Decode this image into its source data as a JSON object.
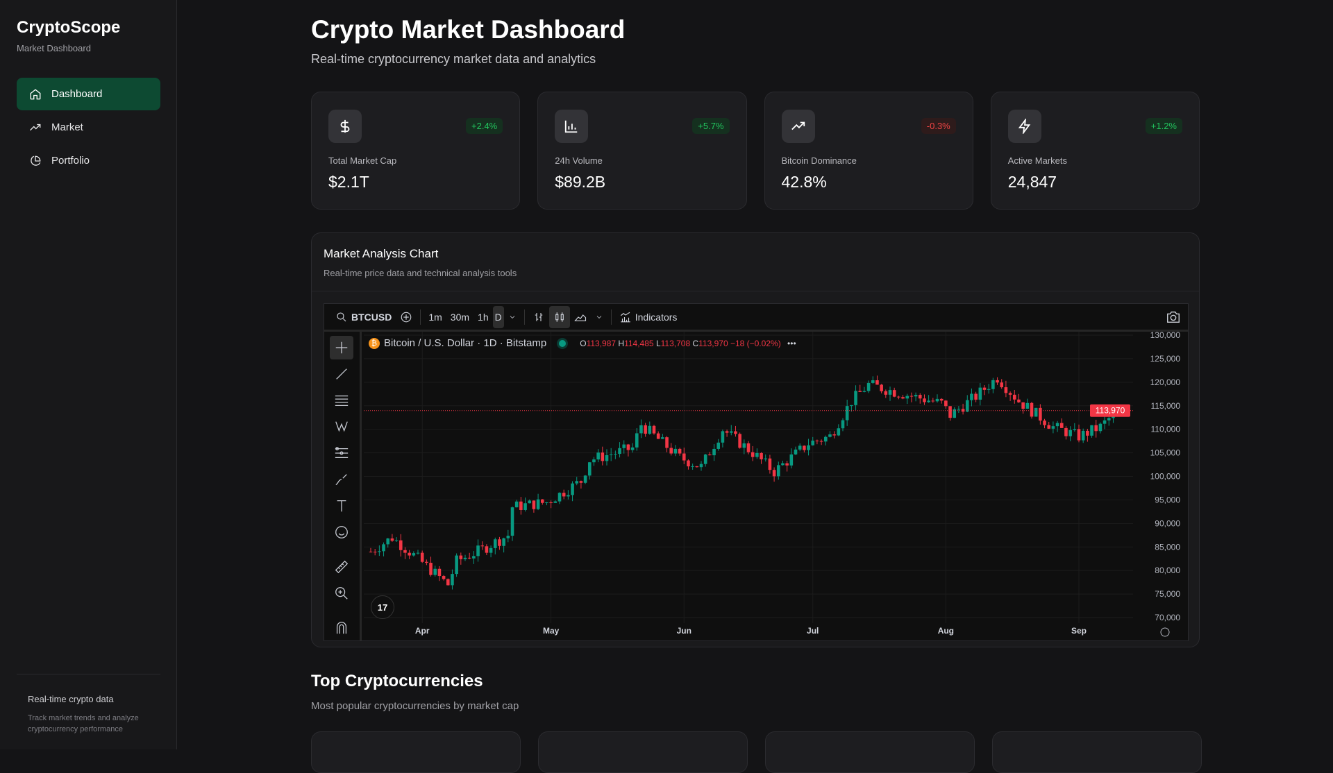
{
  "sidebar": {
    "logo": "CryptoScope",
    "subtitle": "Market Dashboard",
    "items": [
      {
        "label": "Dashboard",
        "icon": "home-icon"
      },
      {
        "label": "Market",
        "icon": "trending-up-icon"
      },
      {
        "label": "Portfolio",
        "icon": "pie-chart-icon"
      }
    ],
    "footer_title": "Real-time crypto data",
    "footer_text": "Track market trends and analyze cryptocurrency performance"
  },
  "header": {
    "title": "Crypto Market Dashboard",
    "subtitle": "Real-time cryptocurrency market data and analytics"
  },
  "stats": [
    {
      "label": "Total Market Cap",
      "value": "$2.1T",
      "change": "+2.4%",
      "icon": "dollar-icon"
    },
    {
      "label": "24h Volume",
      "value": "$89.2B",
      "change": "+5.7%",
      "icon": "bar-chart-icon"
    },
    {
      "label": "Bitcoin Dominance",
      "value": "42.8%",
      "change": "-0.3%",
      "icon": "trending-up-icon"
    },
    {
      "label": "Active Markets",
      "value": "24,847",
      "change": "+1.2%",
      "icon": "zap-icon"
    }
  ],
  "colors": {
    "up": "#22c55e",
    "down": "#ef4444",
    "candle_up": "#089981",
    "candle_down": "#f23645",
    "accent": "#0d4a32"
  },
  "panel": {
    "title": "Market Analysis Chart",
    "subtitle": "Real-time price data and technical analysis tools"
  },
  "toolbar": {
    "symbol": "BTCUSD",
    "intervals": [
      "1m",
      "30m",
      "1h",
      "D"
    ],
    "indicators": "Indicators"
  },
  "legend": {
    "title": "Bitcoin / U.S. Dollar · 1D · Bitstamp",
    "o_label": "O",
    "o": "113,987",
    "h_label": "H",
    "h": "114,485",
    "l_label": "L",
    "l": "113,708",
    "c_label": "C",
    "c": "113,970",
    "change": "−18 (−0.02%)",
    "more": "•••"
  },
  "logo_mark": "TV",
  "chart_data": {
    "type": "candlestick",
    "symbol": "BTCUSD",
    "ylim": [
      70000,
      130000
    ],
    "yticks": [
      70000,
      75000,
      80000,
      85000,
      90000,
      95000,
      100000,
      105000,
      110000,
      115000,
      120000,
      125000,
      130000
    ],
    "xticks": [
      {
        "label": "Apr",
        "day": 12
      },
      {
        "label": "May",
        "day": 42
      },
      {
        "label": "Jun",
        "day": 73
      },
      {
        "label": "Jul",
        "day": 103
      },
      {
        "label": "Aug",
        "day": 134
      },
      {
        "label": "Sep",
        "day": 165
      }
    ],
    "last_price": 113970,
    "last_price_label": "113,970",
    "close_waypoints": [
      [
        0,
        84000
      ],
      [
        5,
        87000
      ],
      [
        11,
        82500
      ],
      [
        18,
        77000
      ],
      [
        20,
        82000
      ],
      [
        26,
        84500
      ],
      [
        32,
        87500
      ],
      [
        33,
        93500
      ],
      [
        41,
        94500
      ],
      [
        49,
        99000
      ],
      [
        51,
        103500
      ],
      [
        61,
        106000
      ],
      [
        63,
        111000
      ],
      [
        72,
        104000
      ],
      [
        77,
        102000
      ],
      [
        82,
        110000
      ],
      [
        89,
        105000
      ],
      [
        94,
        101000
      ],
      [
        102,
        107000
      ],
      [
        107,
        108500
      ],
      [
        112,
        116000
      ],
      [
        116,
        119500
      ],
      [
        122,
        118000
      ],
      [
        133,
        115500
      ],
      [
        135,
        113000
      ],
      [
        141,
        117000
      ],
      [
        146,
        121000
      ],
      [
        151,
        116000
      ],
      [
        159,
        110500
      ],
      [
        165,
        108500
      ],
      [
        170,
        110500
      ],
      [
        174,
        113970
      ]
    ]
  },
  "section": {
    "title": "Top Cryptocurrencies",
    "subtitle": "Most popular cryptocurrencies by market cap"
  }
}
